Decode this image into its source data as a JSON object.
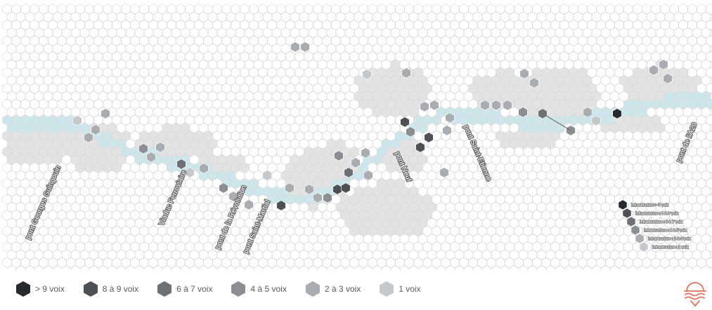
{
  "map": {
    "river_color": "#cce6ee",
    "base_color": "#ffffff",
    "cell_stroke": "#dadada",
    "zone_color": "#e3e3e3",
    "colors": {
      "c1": "#c4c8cc",
      "c2": "#a9adb1",
      "c3": "#8a8e93",
      "c4": "#6d7176",
      "c5": "#4d5156",
      "c6": "#262a2e"
    },
    "bridges": [
      {
        "label": "pont Georges Guingouin"
      },
      {
        "label": "Viaduc Ferroviaire"
      },
      {
        "label": "pont de la Révolution"
      },
      {
        "label": "pont Saint-Martial"
      },
      {
        "label": "pont Neuf"
      },
      {
        "label": "pont Saint-Etienne"
      },
      {
        "label": "pont de l'A20"
      }
    ],
    "mini_legend": [
      {
        "label": "Infrastructure > 9 voix",
        "level": "c6"
      },
      {
        "label": "Infrastructure : 8 à 9 voix",
        "level": "c5"
      },
      {
        "label": "Infrastructure : 6 à 7 voix",
        "level": "c4"
      },
      {
        "label": "Infrastructure : 4 à 5 voix",
        "level": "c3"
      },
      {
        "label": "Infrastructure : 2 à 3 voix",
        "level": "c2"
      },
      {
        "label": "Infrastructure : 1 voix",
        "level": "c1"
      }
    ]
  },
  "legend": [
    {
      "label": "> 9 voix",
      "color": "#262a2e"
    },
    {
      "label": "8 à 9 voix",
      "color": "#4d5156"
    },
    {
      "label": "6 à 7 voix",
      "color": "#6d7176"
    },
    {
      "label": "4 à 5 voix",
      "color": "#8a8e93"
    },
    {
      "label": "2 à 3 voix",
      "color": "#a9adb1"
    },
    {
      "label": "1 voix",
      "color": "#c4c8cc"
    }
  ],
  "logo": {
    "icon": "sun-over-waves-logo",
    "color": "#e8705a"
  }
}
